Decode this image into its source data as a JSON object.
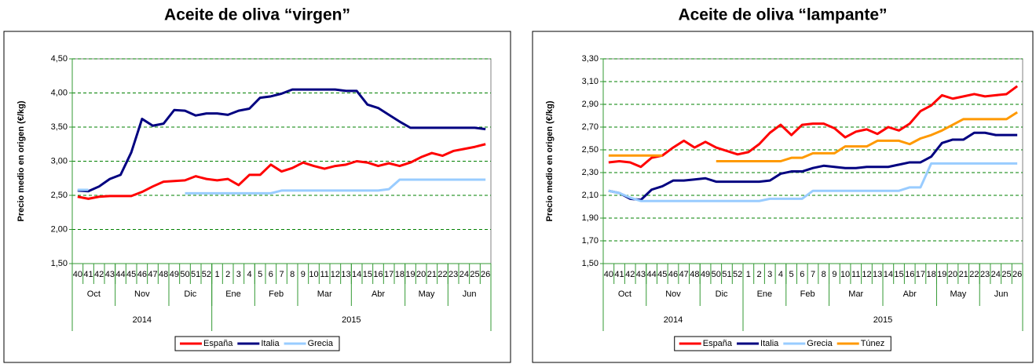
{
  "chart_data": [
    {
      "type": "line",
      "title": "Aceite de oliva “virgen”",
      "y_label": "Precio medio en origen (€/kg)",
      "categories": [
        "40",
        "41",
        "42",
        "43",
        "44",
        "45",
        "46",
        "47",
        "48",
        "49",
        "50",
        "51",
        "52",
        "1",
        "2",
        "3",
        "4",
        "5",
        "6",
        "7",
        "8",
        "9",
        "10",
        "11",
        "12",
        "13",
        "14",
        "15",
        "16",
        "17",
        "18",
        "19",
        "20",
        "21",
        "22",
        "23",
        "24",
        "25",
        "26"
      ],
      "months": [
        "Oct",
        "Oct",
        "Oct",
        "Oct",
        "Nov",
        "Nov",
        "Nov",
        "Nov",
        "Nov",
        "Dic",
        "Dic",
        "Dic",
        "Dic",
        "Ene",
        "Ene",
        "Ene",
        "Ene",
        "Feb",
        "Feb",
        "Feb",
        "Feb",
        "Mar",
        "Mar",
        "Mar",
        "Mar",
        "Mar",
        "Abr",
        "Abr",
        "Abr",
        "Abr",
        "Abr",
        "May",
        "May",
        "May",
        "May",
        "Jun",
        "Jun",
        "Jun",
        "Jun"
      ],
      "years": [
        "2014",
        "2014",
        "2014",
        "2014",
        "2014",
        "2014",
        "2014",
        "2014",
        "2014",
        "2014",
        "2014",
        "2014",
        "2014",
        "2015",
        "2015",
        "2015",
        "2015",
        "2015",
        "2015",
        "2015",
        "2015",
        "2015",
        "2015",
        "2015",
        "2015",
        "2015",
        "2015",
        "2015",
        "2015",
        "2015",
        "2015",
        "2015",
        "2015",
        "2015",
        "2015",
        "2015",
        "2015",
        "2015",
        "2015"
      ],
      "series": [
        {
          "name": "España",
          "color": "#ff0000",
          "values": [
            2.48,
            2.45,
            2.48,
            2.49,
            2.49,
            2.49,
            2.55,
            2.63,
            2.7,
            2.71,
            2.72,
            2.78,
            2.74,
            2.72,
            2.74,
            2.65,
            2.8,
            2.8,
            2.95,
            2.85,
            2.9,
            2.98,
            2.93,
            2.89,
            2.93,
            2.95,
            3.0,
            2.98,
            2.93,
            2.97,
            2.93,
            2.98,
            3.06,
            3.12,
            3.08,
            3.15,
            3.18,
            3.21,
            3.25
          ]
        },
        {
          "name": "Italia",
          "color": "#000080",
          "values": [
            2.57,
            2.56,
            2.63,
            2.74,
            2.8,
            3.13,
            3.62,
            3.52,
            3.55,
            3.75,
            3.74,
            3.67,
            3.7,
            3.7,
            3.68,
            3.74,
            3.77,
            3.93,
            3.95,
            3.99,
            4.05,
            4.05,
            4.05,
            4.05,
            4.05,
            4.03,
            4.03,
            3.83,
            3.78,
            3.68,
            3.58,
            3.49,
            3.49,
            3.49,
            3.49,
            3.49,
            3.49,
            3.49,
            3.47
          ]
        },
        {
          "name": "Grecia",
          "color": "#99ccff",
          "values": [
            2.58,
            2.58,
            null,
            null,
            null,
            null,
            null,
            null,
            null,
            null,
            2.53,
            2.53,
            2.53,
            2.53,
            2.53,
            2.53,
            2.53,
            2.53,
            2.53,
            2.57,
            2.57,
            2.57,
            2.57,
            2.57,
            2.57,
            2.57,
            2.57,
            2.57,
            2.57,
            2.59,
            2.73,
            2.73,
            2.73,
            2.73,
            2.73,
            2.73,
            2.73,
            2.73,
            2.73
          ]
        }
      ],
      "ylim": [
        1.5,
        4.5
      ],
      "yticks": [
        {
          "value": 1.5,
          "label": "1,50"
        },
        {
          "value": 2,
          "label": "2,00"
        },
        {
          "value": 2.5,
          "label": "2,50"
        },
        {
          "value": 3,
          "label": "3,00"
        },
        {
          "value": 3.5,
          "label": "3,50"
        },
        {
          "value": 4,
          "label": "4,00"
        },
        {
          "value": 4.5,
          "label": "4,50"
        }
      ],
      "grid": true
    },
    {
      "type": "line",
      "title": "Aceite de oliva “lampante”",
      "y_label": "Precio medio en origen (€/kg)",
      "categories": [
        "40",
        "41",
        "42",
        "43",
        "44",
        "45",
        "46",
        "47",
        "48",
        "49",
        "50",
        "51",
        "52",
        "1",
        "2",
        "3",
        "4",
        "5",
        "6",
        "7",
        "8",
        "9",
        "10",
        "11",
        "12",
        "13",
        "14",
        "15",
        "16",
        "17",
        "18",
        "19",
        "20",
        "21",
        "22",
        "23",
        "24",
        "25",
        "26"
      ],
      "months": [
        "Oct",
        "Oct",
        "Oct",
        "Oct",
        "Nov",
        "Nov",
        "Nov",
        "Nov",
        "Nov",
        "Dic",
        "Dic",
        "Dic",
        "Dic",
        "Ene",
        "Ene",
        "Ene",
        "Ene",
        "Feb",
        "Feb",
        "Feb",
        "Feb",
        "Mar",
        "Mar",
        "Mar",
        "Mar",
        "Mar",
        "Abr",
        "Abr",
        "Abr",
        "Abr",
        "Abr",
        "May",
        "May",
        "May",
        "May",
        "Jun",
        "Jun",
        "Jun",
        "Jun"
      ],
      "years": [
        "2014",
        "2014",
        "2014",
        "2014",
        "2014",
        "2014",
        "2014",
        "2014",
        "2014",
        "2014",
        "2014",
        "2014",
        "2014",
        "2015",
        "2015",
        "2015",
        "2015",
        "2015",
        "2015",
        "2015",
        "2015",
        "2015",
        "2015",
        "2015",
        "2015",
        "2015",
        "2015",
        "2015",
        "2015",
        "2015",
        "2015",
        "2015",
        "2015",
        "2015",
        "2015",
        "2015",
        "2015",
        "2015",
        "2015"
      ],
      "series": [
        {
          "name": "España",
          "color": "#ff0000",
          "values": [
            2.39,
            2.4,
            2.39,
            2.35,
            2.43,
            2.45,
            2.52,
            2.58,
            2.52,
            2.57,
            2.52,
            2.49,
            2.46,
            2.48,
            2.55,
            2.65,
            2.72,
            2.63,
            2.72,
            2.73,
            2.73,
            2.69,
            2.61,
            2.66,
            2.68,
            2.64,
            2.7,
            2.67,
            2.73,
            2.84,
            2.89,
            2.98,
            2.95,
            2.97,
            2.99,
            2.97,
            2.98,
            2.99,
            3.06
          ]
        },
        {
          "name": "Italia",
          "color": "#000080",
          "values": [
            2.14,
            2.12,
            2.07,
            2.06,
            2.15,
            2.18,
            2.23,
            2.23,
            2.24,
            2.25,
            2.22,
            2.22,
            2.22,
            2.22,
            2.22,
            2.23,
            2.29,
            2.31,
            2.31,
            2.34,
            2.36,
            2.35,
            2.34,
            2.34,
            2.35,
            2.35,
            2.35,
            2.37,
            2.39,
            2.39,
            2.44,
            2.56,
            2.59,
            2.59,
            2.65,
            2.65,
            2.63,
            2.63,
            2.63
          ]
        },
        {
          "name": "Grecia",
          "color": "#99ccff",
          "values": [
            2.14,
            2.12,
            2.08,
            2.05,
            2.05,
            2.05,
            2.05,
            2.05,
            2.05,
            2.05,
            2.05,
            2.05,
            2.05,
            2.05,
            2.05,
            2.07,
            2.07,
            2.07,
            2.07,
            2.14,
            2.14,
            2.14,
            2.14,
            2.14,
            2.14,
            2.14,
            2.14,
            2.14,
            2.17,
            2.17,
            2.38,
            2.38,
            2.38,
            2.38,
            2.38,
            2.38,
            2.38,
            2.38,
            2.38
          ]
        },
        {
          "name": "Túnez",
          "color": "#ff9900",
          "values": [
            2.45,
            2.45,
            2.45,
            2.45,
            2.45,
            2.45,
            null,
            null,
            null,
            null,
            2.4,
            2.4,
            2.4,
            2.4,
            2.4,
            2.4,
            2.4,
            2.43,
            2.43,
            2.47,
            2.47,
            2.47,
            2.53,
            2.53,
            2.53,
            2.58,
            2.58,
            2.58,
            2.55,
            2.6,
            2.63,
            2.67,
            2.72,
            2.77,
            2.77,
            2.77,
            2.77,
            2.77,
            2.83
          ]
        }
      ],
      "ylim": [
        1.5,
        3.3
      ],
      "yticks": [
        {
          "value": 1.5,
          "label": "1,50"
        },
        {
          "value": 1.7,
          "label": "1,70"
        },
        {
          "value": 1.9,
          "label": "1,90"
        },
        {
          "value": 2.1,
          "label": "2,10"
        },
        {
          "value": 2.3,
          "label": "2,30"
        },
        {
          "value": 2.5,
          "label": "2,50"
        },
        {
          "value": 2.7,
          "label": "2,70"
        },
        {
          "value": 2.9,
          "label": "2,90"
        },
        {
          "value": 3.1,
          "label": "3,10"
        },
        {
          "value": 3.3,
          "label": "3,30"
        }
      ],
      "grid": true
    }
  ]
}
